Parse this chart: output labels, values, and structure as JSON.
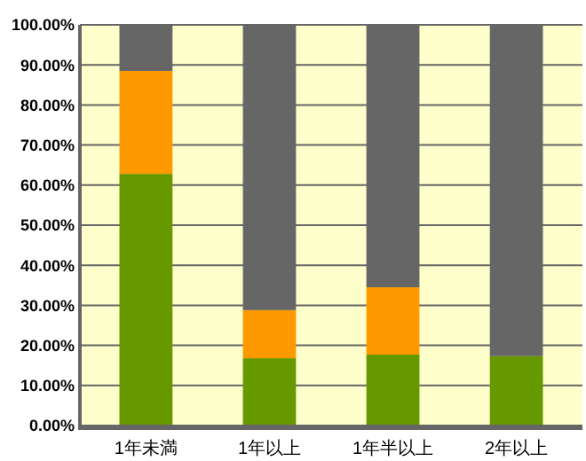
{
  "chart_data": {
    "type": "bar",
    "stacked": true,
    "categories": [
      "1年未満",
      "1年以上",
      "1年半以上",
      "2年以上"
    ],
    "series": [
      {
        "color": "#669900",
        "values": [
          62.8,
          16.8,
          17.7,
          17.3
        ]
      },
      {
        "color": "#ff9900",
        "values": [
          25.7,
          12,
          16.8,
          0
        ]
      },
      {
        "color": "#666666",
        "values": [
          11.5,
          71.2,
          65.5,
          82.7
        ]
      }
    ],
    "ylim": [
      0,
      100
    ],
    "yticks": [
      {
        "value": 0,
        "label": "0.00%"
      },
      {
        "value": 10,
        "label": "10.00%"
      },
      {
        "value": 20,
        "label": "20.00%"
      },
      {
        "value": 30,
        "label": "30.00%"
      },
      {
        "value": 40,
        "label": "40.00%"
      },
      {
        "value": 50,
        "label": "50.00%"
      },
      {
        "value": 60,
        "label": "60.00%"
      },
      {
        "value": 70,
        "label": "70.00%"
      },
      {
        "value": 80,
        "label": "80.00%"
      },
      {
        "value": 90,
        "label": "90.00%"
      },
      {
        "value": 100,
        "label": "100.00%"
      }
    ],
    "grid": "y"
  }
}
